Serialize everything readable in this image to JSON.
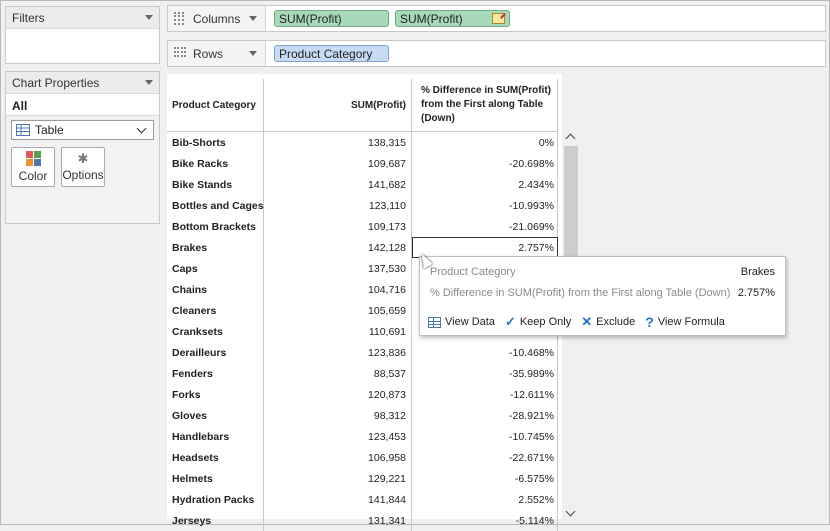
{
  "filters": {
    "title": "Filters"
  },
  "chart_properties": {
    "title": "Chart Properties",
    "all_label": "All",
    "mark_type": "Table",
    "color_label": "Color",
    "options_label": "Options"
  },
  "shelves": {
    "columns_label": "Columns",
    "rows_label": "Rows",
    "columns_pills": [
      "SUM(Profit)",
      "SUM(Profit)"
    ],
    "rows_pills": [
      "Product Category"
    ]
  },
  "table": {
    "headers": [
      "Product Category",
      "SUM(Profit)",
      "% Difference in SUM(Profit) from the First along Table (Down)"
    ],
    "rows": [
      [
        "Bib-Shorts",
        "138,315",
        "0%"
      ],
      [
        "Bike Racks",
        "109,687",
        "-20.698%"
      ],
      [
        "Bike Stands",
        "141,682",
        "2.434%"
      ],
      [
        "Bottles and Cages",
        "123,110",
        "-10.993%"
      ],
      [
        "Bottom Brackets",
        "109,173",
        "-21.069%"
      ],
      [
        "Brakes",
        "142,128",
        "2.757%"
      ],
      [
        "Caps",
        "137,530",
        ""
      ],
      [
        "Chains",
        "104,716",
        ""
      ],
      [
        "Cleaners",
        "105,659",
        ""
      ],
      [
        "Cranksets",
        "110,691",
        ""
      ],
      [
        "Derailleurs",
        "123,836",
        "-10.468%"
      ],
      [
        "Fenders",
        "88,537",
        "-35.989%"
      ],
      [
        "Forks",
        "120,873",
        "-12.611%"
      ],
      [
        "Gloves",
        "98,312",
        "-28.921%"
      ],
      [
        "Handlebars",
        "123,453",
        "-10.745%"
      ],
      [
        "Headsets",
        "106,958",
        "-22.671%"
      ],
      [
        "Helmets",
        "129,221",
        "-6.575%"
      ],
      [
        "Hydration Packs",
        "141,844",
        "2.552%"
      ],
      [
        "Jerseys",
        "131,341",
        "-5.114%"
      ]
    ],
    "selected_index": 5
  },
  "tooltip": {
    "key1": "Product Category",
    "val1": "Brakes",
    "key2": "% Difference in SUM(Profit) from the First along Table (Down)",
    "val2": "2.757%",
    "actions": [
      "View Data",
      "Keep Only",
      "Exclude",
      "View Formula"
    ]
  },
  "colors": {
    "pill_green": "#a8d9b8",
    "pill_blue": "#c7dcf4",
    "color_icon": [
      "#e15759",
      "#f28e2b",
      "#59a14f",
      "#4e79a7"
    ]
  }
}
